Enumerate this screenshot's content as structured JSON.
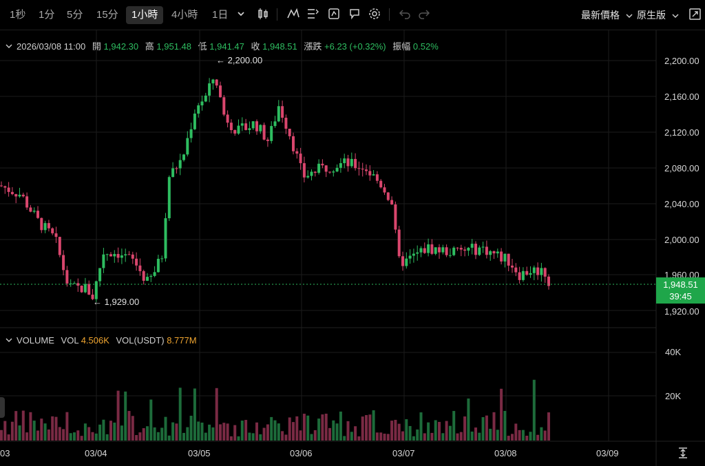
{
  "toolbar": {
    "timeframes": [
      "1秒",
      "1分",
      "5分",
      "15分",
      "1小時",
      "4小時",
      "1日"
    ],
    "active_timeframe": "1小時",
    "icons": [
      "chevron-down-icon",
      "candlestick-type-icon",
      "indicator-icon",
      "drawing-tools-icon",
      "replay-icon",
      "layout-icon",
      "settings-icon",
      "undo-icon",
      "redo-icon"
    ],
    "price_type": "最新價格",
    "view_mode": "原生版",
    "fullscreen_icon": "fullscreen-icon"
  },
  "ohlc": {
    "datetime": "2026/03/08 11:00",
    "open_label": "開",
    "open": "1,942.30",
    "high_label": "高",
    "high": "1,951.48",
    "low_label": "低",
    "low": "1,941.47",
    "close_label": "收",
    "close": "1,948.51",
    "change_label": "漲跌",
    "change": "+6.23 (+0.32%)",
    "amplitude_label": "振幅",
    "amplitude": "0.52%"
  },
  "price_axis": {
    "ticks": [
      "2,200.00",
      "2,160.00",
      "2,120.00",
      "2,080.00",
      "2,040.00",
      "2,000.00",
      "1,960.00",
      "1,920.00"
    ],
    "last_price": "1,948.51",
    "countdown": "39:45"
  },
  "markers": {
    "high": "2,200.00",
    "low": "1,929.00"
  },
  "volume": {
    "title": "VOLUME",
    "vol_label": "VOL",
    "vol_value": "4.506K",
    "usdt_label": "VOL(USDT)",
    "usdt_value": "8.777M",
    "axis_ticks": [
      "40K",
      "20K"
    ]
  },
  "time_axis": [
    "03",
    "03/04",
    "03/05",
    "03/06",
    "03/07",
    "03/08",
    "03/09"
  ],
  "colors": {
    "up": "#2ebd60",
    "down": "#d9466d",
    "accent": "#1fa64a"
  }
}
